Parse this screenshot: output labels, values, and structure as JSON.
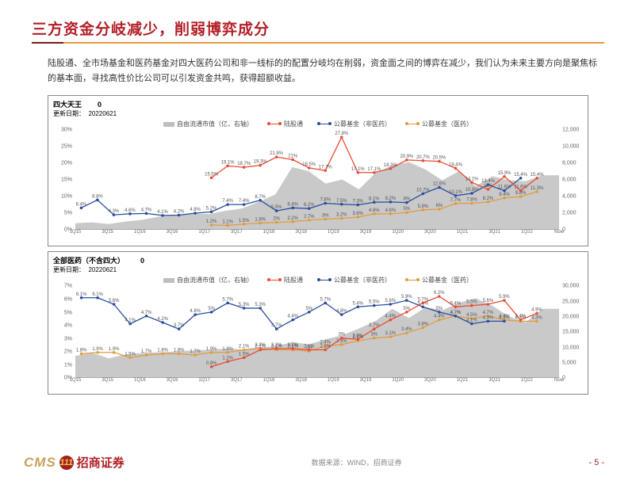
{
  "page": {
    "title": "三方资金分岐减少，削弱博弈成分",
    "body_text": "陆股通、全市场基金和医药基金对四大医药公司和非一线标的的配置分岐均在削弱，资金面之间的博弈在减少，我们认为未来主要方向是聚焦标的基本面，寻找高性价比公司可以引发资金共鸣，获得超额收益。",
    "data_source": "数据来源：WIND，招商证券",
    "page_num": "- 5 -"
  },
  "brand": {
    "cms": "CMS",
    "circle": "111",
    "cn": "招商证券"
  },
  "colors": {
    "title": "#b22028",
    "series_area": "#bfbfbf",
    "series_red": "#e94b35",
    "series_blue": "#2a4da0",
    "series_orange": "#e29b3c",
    "grid": "#e0e0e0"
  },
  "legend": {
    "area": "自由流通市值（亿，右轴）",
    "red": "陆股通",
    "blue": "公募基金（非医药）",
    "orange": "公募基金（医药）"
  },
  "chart1": {
    "title": "四大天王",
    "tag": "0",
    "date_label": "更新日期：",
    "date": "20220621",
    "height": 140,
    "y_left": {
      "min": 0,
      "max": 30,
      "step": 5,
      "fmt": "%"
    },
    "y_right": {
      "min": 0,
      "max": 12000,
      "step": 2000
    },
    "x": [
      "1Q15",
      "3Q15",
      "1Q16",
      "3Q16",
      "1Q17",
      "3Q17",
      "1Q18",
      "3Q18",
      "1Q19",
      "3Q19",
      "1Q20",
      "3Q20",
      "1Q21",
      "3Q21",
      "1Q22",
      "Now"
    ],
    "area": [
      700,
      800,
      600,
      900,
      1100,
      1500,
      1700,
      1900,
      1800,
      2200,
      2500,
      3300,
      4200,
      7500,
      7000,
      5500,
      6000,
      4800,
      6800,
      7700,
      8100,
      7200,
      5900,
      7000,
      5200,
      6400,
      5900,
      5800,
      6500,
      6500
    ],
    "red": {
      "start_idx": 8,
      "values": [
        15.5,
        19.1,
        18.7,
        19.3,
        21.8,
        21.0,
        18.5,
        17.7,
        27.8,
        17.1,
        17.1,
        18.3,
        20.9,
        20.7,
        20.5,
        18.4,
        14.1,
        12.0,
        15.9,
        11.6,
        15.4
      ]
    },
    "blue": {
      "values": [
        6.4,
        8.8,
        4.3,
        4.6,
        4.7,
        4.1,
        4.2,
        4.8,
        5.2,
        7.4,
        7.4,
        8.7,
        5.5,
        6.4,
        6.2,
        7.8,
        7.5,
        7.3,
        8.1,
        8.2,
        8.0,
        10.7,
        12.6,
        10.1,
        10.8,
        13.4,
        11.6,
        15.4
      ]
    },
    "orange": {
      "start_idx": 8,
      "values": [
        1.2,
        1.1,
        1.5,
        1.8,
        2.0,
        2.2,
        2.7,
        3.0,
        3.2,
        3.6,
        4.6,
        4.6,
        5.0,
        5.8,
        6.0,
        7.7,
        7.8,
        8.2,
        9.4,
        9.8,
        11.3
      ]
    }
  },
  "chart2": {
    "title": "全部医药（不含四大）",
    "tag": "0",
    "date_label": "更新日期：",
    "date": "20220621",
    "height": 130,
    "y_left": {
      "min": 0,
      "max": 7,
      "step": 1,
      "fmt": "%"
    },
    "y_right": {
      "min": 0,
      "max": 30000,
      "step": 5000
    },
    "x": [
      "1Q15",
      "3Q15",
      "1Q16",
      "3Q16",
      "1Q17",
      "3Q17",
      "1Q18",
      "3Q18",
      "1Q19",
      "3Q19",
      "1Q20",
      "3Q20",
      "1Q21",
      "3Q21",
      "1Q22",
      "Now"
    ],
    "area": [
      7000,
      8000,
      6200,
      7500,
      8000,
      8200,
      8400,
      8800,
      9000,
      9400,
      9200,
      9800,
      10200,
      11500,
      10800,
      12500,
      13800,
      16000,
      18500,
      22500,
      19500,
      23000,
      22000,
      24500,
      26000,
      23500,
      20000,
      18000,
      22500,
      22500
    ],
    "red": {
      "start_idx": 8,
      "values": [
        0.8,
        1.2,
        1.5,
        2.1,
        2.2,
        2.2,
        2.1,
        2.1,
        3.0,
        2.9,
        3.7,
        4.4,
        5.0,
        5.7,
        6.2,
        5.4,
        5.5,
        5.6,
        5.9,
        4.4,
        4.9
      ]
    },
    "blue": {
      "values": [
        6.1,
        6.1,
        5.6,
        4.1,
        4.7,
        4.2,
        3.7,
        4.8,
        5.0,
        5.7,
        5.3,
        5.3,
        3.7,
        4.4,
        5.0,
        5.7,
        4.8,
        5.4,
        5.5,
        5.6,
        5.9,
        5.4,
        5.0,
        4.7,
        4.1,
        4.3,
        4.3
      ]
    },
    "orange": {
      "start_idx": 0,
      "values": [
        1.8,
        1.9,
        1.9,
        1.5,
        1.7,
        1.8,
        1.8,
        1.7,
        1.9,
        1.9,
        2.1,
        2.2,
        2.1,
        2.1,
        2.0,
        2.4,
        2.5,
        2.8,
        3.0,
        3.1,
        3.4,
        3.8,
        4.4,
        4.7,
        4.5,
        4.7,
        4.4,
        4.3,
        4.3
      ]
    }
  }
}
